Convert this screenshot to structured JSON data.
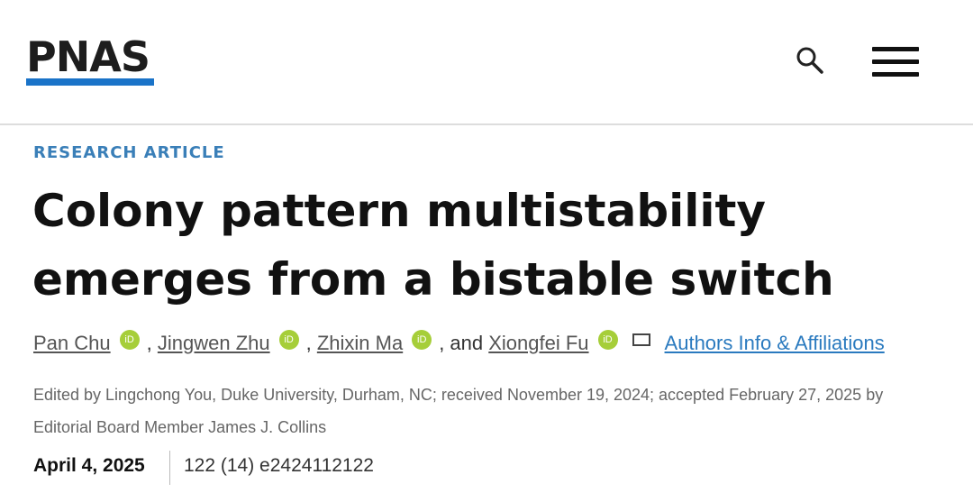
{
  "header": {
    "logo": "PNAS",
    "brand_color": "#1a73c8",
    "search_icon": "search-icon",
    "menu_icon": "hamburger-menu-icon"
  },
  "article": {
    "kicker": "RESEARCH ARTICLE",
    "title": "Colony pattern multistability emerges from a bistable switch",
    "authors": [
      "Pan Chu",
      "Jingwen Zhu",
      "Zhixin Ma",
      "Xiongfei Fu"
    ],
    "sep": ", ",
    "and": ", and ",
    "orcid_label": "iD",
    "affiliations_link": "Authors Info & Affiliations",
    "edited": "Edited by Lingchong You, Duke University, Durham, NC; received November 19, 2024; accepted February 27, 2025 by Editorial Board Member James J. Collins",
    "date": "April 4, 2025",
    "volume": "122 (14) e2424112122"
  }
}
